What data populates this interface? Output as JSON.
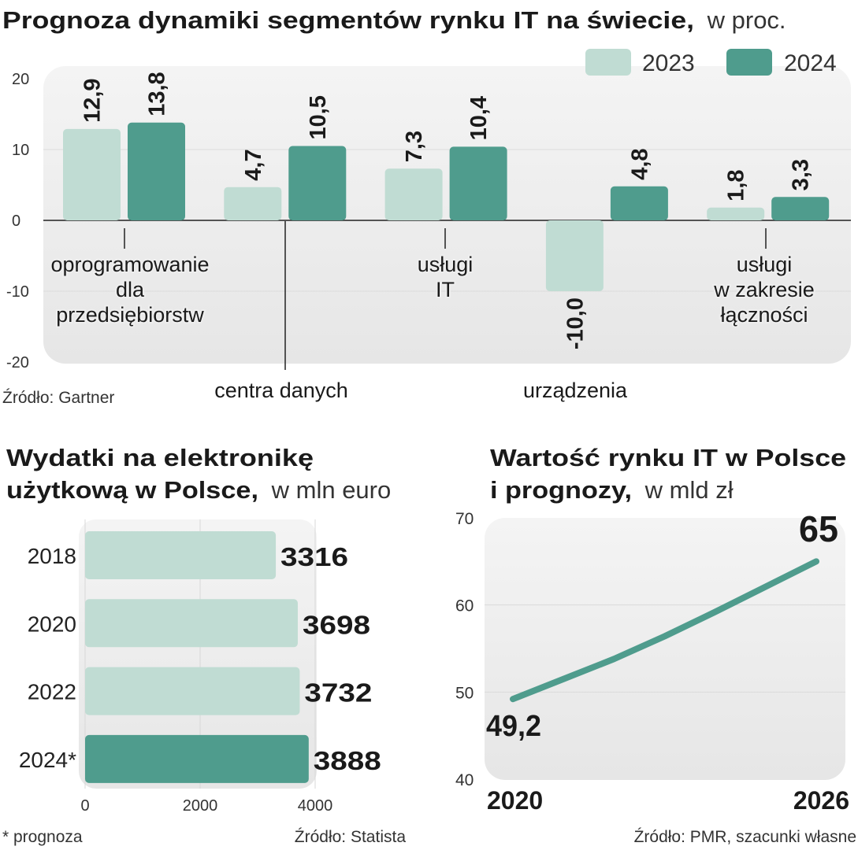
{
  "colors": {
    "c2023": "#c0dcd3",
    "c2024": "#4f9c8d",
    "panel": "#eeeeee",
    "line": "#4f9c8d"
  },
  "chart_data": [
    {
      "type": "bar",
      "title": "Prognoza dynamiki segmentów rynku IT na świecie,",
      "title_unit": "w proc.",
      "categories": [
        [
          "oprogramowanie",
          "dla",
          "przedsiębiorstw"
        ],
        [
          "centra danych"
        ],
        [
          "usługi",
          "IT"
        ],
        [
          "urządzenia"
        ],
        [
          "usługi",
          "w zakresie",
          "łączności"
        ]
      ],
      "series": [
        {
          "name": "2023",
          "values": [
            12.9,
            4.7,
            7.3,
            -10.0,
            1.8
          ],
          "labels": [
            "12,9",
            "4,7",
            "7,3",
            "-10,0",
            "1,8"
          ]
        },
        {
          "name": "2024",
          "values": [
            13.8,
            10.5,
            10.4,
            4.8,
            3.3
          ],
          "labels": [
            "13,8",
            "10,5",
            "10,4",
            "4,8",
            "3,3"
          ]
        }
      ],
      "yticks": [
        "20",
        "10",
        "0",
        "-10",
        "-20"
      ],
      "ylim": [
        -20,
        20
      ],
      "legend": "top-right",
      "source": "Źródło: Gartner"
    },
    {
      "type": "bar",
      "orientation": "horizontal",
      "title_lines": [
        "Wydatki na elektronikę",
        "użytkową w Polsce,"
      ],
      "title_unit": "w mln euro",
      "categories": [
        "2018",
        "2020",
        "2022",
        "2024*"
      ],
      "values": [
        3316,
        3698,
        3732,
        3888
      ],
      "labels": [
        "3316",
        "3698",
        "3732",
        "3888"
      ],
      "highlight": [
        false,
        false,
        false,
        true
      ],
      "xticks": [
        "0",
        "2000",
        "4000"
      ],
      "xlim": [
        0,
        4000
      ],
      "footnote": "* prognoza",
      "source": "Źródło: Statista"
    },
    {
      "type": "line",
      "title_lines": [
        "Wartość rynku IT w Polsce",
        "i prognozy,"
      ],
      "title_unit": "w mld zł",
      "x": [
        2020,
        2021,
        2022,
        2023,
        2024,
        2025,
        2026
      ],
      "y": [
        49.2,
        51.5,
        53.8,
        56.4,
        59.2,
        62.1,
        65
      ],
      "start_label": "49,2",
      "end_label": "65",
      "xticks": [
        "2020",
        "2026"
      ],
      "yticks": [
        "70",
        "60",
        "50",
        "40"
      ],
      "ylim": [
        40,
        70
      ],
      "source": "Źródło: PMR, szacunki własne"
    }
  ]
}
